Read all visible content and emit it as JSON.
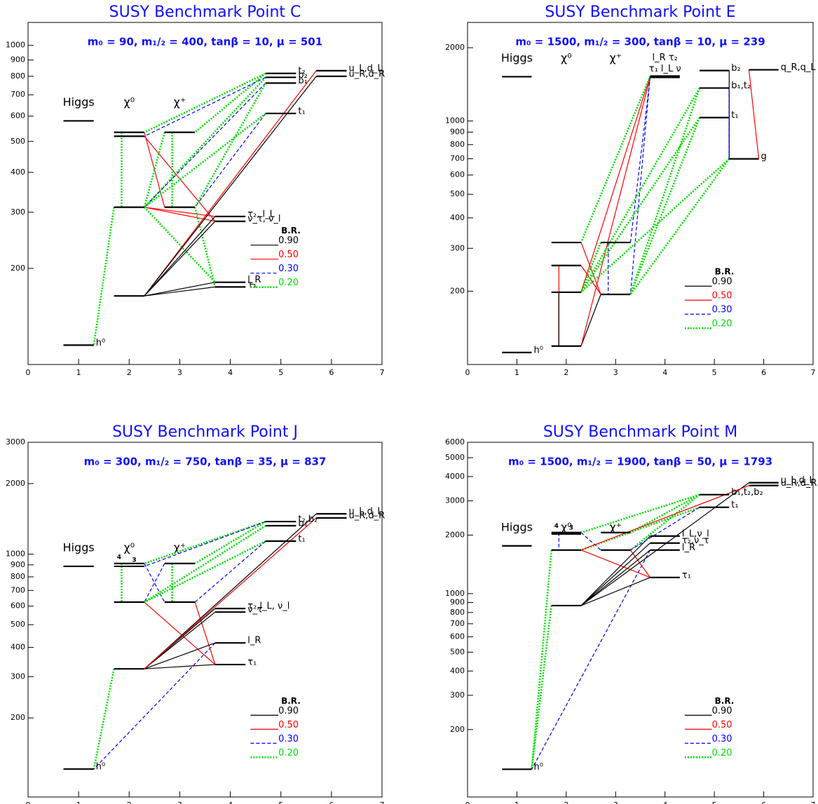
{
  "chart_data": [
    {
      "type": "spectrum",
      "title": "SUSY Benchmark Point C",
      "subtitle": "m₀ = 90,   m₁/₂ = 400,   tanβ = 10,  μ = 501",
      "xlim": [
        0,
        7
      ],
      "xticks": [
        0,
        1,
        2,
        3,
        4,
        5,
        6,
        7
      ],
      "ylim": [
        100,
        1180
      ],
      "log_y": true,
      "yticks": [
        200,
        300,
        400,
        500,
        600,
        700,
        800,
        900,
        1000
      ],
      "column_labels": [
        {
          "x": 1,
          "label": "Higgs"
        },
        {
          "x": 2,
          "label": "χ⁰"
        },
        {
          "x": 3,
          "label": "χ⁺"
        }
      ],
      "levels": [
        {
          "x": 1,
          "mass": 115,
          "label": "h⁰"
        },
        {
          "x": 1,
          "mass": 580
        },
        {
          "x": 2,
          "mass": 534
        },
        {
          "x": 2,
          "mass": 519
        },
        {
          "x": 2,
          "mass": 311
        },
        {
          "x": 2,
          "mass": 164
        },
        {
          "x": 3,
          "mass": 534
        },
        {
          "x": 3,
          "mass": 311
        },
        {
          "x": 4,
          "mass": 291,
          "label": "τ₂, l_L"
        },
        {
          "x": 4,
          "mass": 281,
          "label": "ν_τ, ν_l"
        },
        {
          "x": 4,
          "mass": 181,
          "label": "l_R"
        },
        {
          "x": 4,
          "mass": 175,
          "label": "τ₁"
        },
        {
          "x": 5,
          "mass": 817,
          "label": "t₂"
        },
        {
          "x": 5,
          "mass": 794,
          "label": "b₂"
        },
        {
          "x": 5,
          "mass": 762,
          "label": "b₁"
        },
        {
          "x": 5,
          "mass": 612,
          "label": "t₁"
        },
        {
          "x": 6,
          "mass": 833,
          "label": "u_L,d_L"
        },
        {
          "x": 6,
          "mass": 800,
          "label": "u_R,d_R"
        }
      ],
      "decays": [
        {
          "from": 4,
          "to": 0,
          "br": 0.2
        },
        {
          "from": 2,
          "to": 4,
          "br": 0.2
        },
        {
          "from": 2,
          "to": 7,
          "br": 0.5
        },
        {
          "from": 3,
          "to": 9,
          "br": 0.5
        },
        {
          "from": 6,
          "to": 4,
          "br": 0.2
        },
        {
          "from": 6,
          "to": 7,
          "br": 0.2
        },
        {
          "from": 4,
          "to": 8,
          "br": 0.5
        },
        {
          "from": 4,
          "to": 9,
          "br": 0.5
        },
        {
          "from": 4,
          "to": 10,
          "br": 0.2
        },
        {
          "from": 7,
          "to": 11,
          "br": 0.2
        },
        {
          "from": 8,
          "to": 5,
          "br": 0.9
        },
        {
          "from": 9,
          "to": 5,
          "br": 0.9
        },
        {
          "from": 10,
          "to": 5,
          "br": 0.9
        },
        {
          "from": 11,
          "to": 5,
          "br": 0.9
        },
        {
          "from": 12,
          "to": 2,
          "br": 0.2
        },
        {
          "from": 12,
          "to": 6,
          "br": 0.2
        },
        {
          "from": 13,
          "to": 4,
          "br": 0.2
        },
        {
          "from": 14,
          "to": 4,
          "br": 0.3
        },
        {
          "from": 13,
          "to": 3,
          "br": 0.3
        },
        {
          "from": 15,
          "to": 7,
          "br": 0.3
        },
        {
          "from": 15,
          "to": 4,
          "br": 0.2
        },
        {
          "from": 16,
          "to": 5,
          "br": 0.5
        },
        {
          "from": 17,
          "to": 5,
          "br": 0.9
        },
        {
          "from": 14,
          "to": 7,
          "br": 0.2
        }
      ],
      "legend_title": "B.R.",
      "legend": "right",
      "branching_ratios": [
        {
          "value": 0.9,
          "label": "0.90"
        },
        {
          "value": 0.5,
          "label": "0.50"
        },
        {
          "value": 0.3,
          "label": "0.30"
        },
        {
          "value": 0.2,
          "label": "0.20"
        }
      ],
      "br_colors": [
        "#000000",
        "#ff0000",
        "#0000ff",
        "#00e000"
      ],
      "title_color": "#1010ff"
    },
    {
      "type": "spectrum",
      "title": "SUSY Benchmark Point E",
      "subtitle": "m₀ = 1500, m₁/₂ = 300,   tanβ = 10,  μ = 239",
      "xlim": [
        0,
        7
      ],
      "xticks": [
        0,
        1,
        2,
        3,
        4,
        5,
        6,
        7
      ],
      "ylim": [
        100,
        2540
      ],
      "log_y": true,
      "yticks": [
        200,
        300,
        400,
        500,
        600,
        700,
        800,
        900,
        1000,
        2000
      ],
      "column_labels": [
        {
          "x": 1,
          "label": "Higgs"
        },
        {
          "x": 2,
          "label": "χ⁰"
        },
        {
          "x": 3,
          "label": "χ⁺"
        }
      ],
      "levels": [
        {
          "x": 1,
          "mass": 112,
          "label": "h⁰"
        },
        {
          "x": 1,
          "mass": 1520
        },
        {
          "x": 2,
          "mass": 317
        },
        {
          "x": 2,
          "mass": 255
        },
        {
          "x": 2,
          "mass": 198
        },
        {
          "x": 2,
          "mass": 119
        },
        {
          "x": 3,
          "mass": 317
        },
        {
          "x": 3,
          "mass": 194
        },
        {
          "x": 4,
          "mass": 1530,
          "label": "l_R  τ₂"
        },
        {
          "x": 4,
          "mass": 1510,
          "label": "τ₁  l_L  ν"
        },
        {
          "x": 5,
          "mass": 1612,
          "label": "b₂"
        },
        {
          "x": 5,
          "mass": 1366,
          "label": "b₁,t₂"
        },
        {
          "x": 5,
          "mass": 1033,
          "label": "t₁"
        },
        {
          "x": 6,
          "mass": 1623,
          "label": "q_R,q_L"
        },
        {
          "x": 5.6,
          "mass": 699,
          "label": "g"
        }
      ],
      "decays": [
        {
          "from": 3,
          "to": 5,
          "br": 0.5
        },
        {
          "from": 4,
          "to": 5,
          "br": 0.9
        },
        {
          "from": 2,
          "to": 7,
          "br": 0.5
        },
        {
          "from": 3,
          "to": 7,
          "br": 0.5
        },
        {
          "from": 7,
          "to": 5,
          "br": 0.9
        },
        {
          "from": 6,
          "to": 4,
          "br": 0.2
        },
        {
          "from": 6,
          "to": 7,
          "br": 0.3
        },
        {
          "from": 8,
          "to": 4,
          "br": 0.5
        },
        {
          "from": 9,
          "to": 5,
          "br": 0.5
        },
        {
          "from": 8,
          "to": 7,
          "br": 0.3
        },
        {
          "from": 9,
          "to": 6,
          "br": 0.3
        },
        {
          "from": 8,
          "to": 2,
          "br": 0.2
        },
        {
          "from": 11,
          "to": 4,
          "br": 0.2
        },
        {
          "from": 11,
          "to": 7,
          "br": 0.2
        },
        {
          "from": 12,
          "to": 4,
          "br": 0.2
        },
        {
          "from": 12,
          "to": 7,
          "br": 0.2
        },
        {
          "from": 14,
          "to": 4,
          "br": 0.2
        },
        {
          "from": 14,
          "to": 7,
          "br": 0.2
        },
        {
          "from": 10,
          "to": 14,
          "br": 0.9
        },
        {
          "from": 11,
          "to": 14,
          "br": 0.3
        },
        {
          "from": 12,
          "to": 14,
          "br": 0.3
        },
        {
          "from": 13,
          "to": 14,
          "br": 0.5
        }
      ],
      "legend_title": "B.R.",
      "legend": "lower right",
      "branching_ratios": [
        {
          "value": 0.9,
          "label": "0.90"
        },
        {
          "value": 0.5,
          "label": "0.50"
        },
        {
          "value": 0.3,
          "label": "0.30"
        },
        {
          "value": 0.2,
          "label": "0.20"
        }
      ],
      "br_colors": [
        "#000000",
        "#ff0000",
        "#0000ff",
        "#00e000"
      ],
      "title_color": "#1010ff"
    },
    {
      "type": "spectrum",
      "title": "SUSY Benchmark Point J",
      "subtitle": "m₀ = 300,  m₁/₂ = 750,  tanβ = 35,  μ = 837",
      "xlim": [
        0,
        7
      ],
      "xticks": [
        0,
        1,
        2,
        3,
        4,
        5,
        6,
        7
      ],
      "ylim": [
        92,
        3000
      ],
      "log_y": true,
      "yticks": [
        200,
        300,
        400,
        500,
        600,
        700,
        800,
        900,
        1000,
        2000,
        3000
      ],
      "column_labels": [
        {
          "x": 1,
          "label": "Higgs"
        },
        {
          "x": 2,
          "label": "χ⁰"
        },
        {
          "x": 3,
          "label": "χ⁺"
        }
      ],
      "levels": [
        {
          "x": 1,
          "mass": 121,
          "label": "h⁰"
        },
        {
          "x": 1,
          "mass": 887
        },
        {
          "x": 2,
          "mass": 912,
          "label": "4"
        },
        {
          "x": 2,
          "mass": 887,
          "label": "3"
        },
        {
          "x": 2,
          "mass": 624
        },
        {
          "x": 2,
          "mass": 324
        },
        {
          "x": 3,
          "mass": 912
        },
        {
          "x": 3,
          "mass": 624
        },
        {
          "x": 4,
          "mass": 586,
          "label": "τ₂,l_L, ν_l"
        },
        {
          "x": 4,
          "mass": 566,
          "label": "ν_τ"
        },
        {
          "x": 4,
          "mass": 418,
          "label": "l_R"
        },
        {
          "x": 4,
          "mass": 338,
          "label": "τ₁"
        },
        {
          "x": 5,
          "mass": 1377,
          "label": "t₂,b₂"
        },
        {
          "x": 5,
          "mass": 1322,
          "label": "b₁"
        },
        {
          "x": 5,
          "mass": 1136,
          "label": "t₁"
        },
        {
          "x": 6,
          "mass": 1486,
          "label": "u_L,d_L"
        },
        {
          "x": 6,
          "mass": 1427,
          "label": "u_R,d_R"
        }
      ],
      "decays": [
        {
          "from": 5,
          "to": 0,
          "br": 0.2
        },
        {
          "from": 10,
          "to": 0,
          "br": 0.3
        },
        {
          "from": 2,
          "to": 4,
          "br": 0.2
        },
        {
          "from": 2,
          "to": 7,
          "br": 0.3
        },
        {
          "from": 6,
          "to": 4,
          "br": 0.3
        },
        {
          "from": 6,
          "to": 7,
          "br": 0.2
        },
        {
          "from": 4,
          "to": 11,
          "br": 0.5
        },
        {
          "from": 7,
          "to": 11,
          "br": 0.5
        },
        {
          "from": 8,
          "to": 5,
          "br": 0.9
        },
        {
          "from": 9,
          "to": 5,
          "br": 0.9
        },
        {
          "from": 10,
          "to": 5,
          "br": 0.9
        },
        {
          "from": 11,
          "to": 5,
          "br": 0.9
        },
        {
          "from": 12,
          "to": 2,
          "br": 0.2
        },
        {
          "from": 12,
          "to": 6,
          "br": 0.2
        },
        {
          "from": 13,
          "to": 4,
          "br": 0.2
        },
        {
          "from": 14,
          "to": 4,
          "br": 0.2
        },
        {
          "from": 14,
          "to": 7,
          "br": 0.3
        },
        {
          "from": 15,
          "to": 5,
          "br": 0.9
        },
        {
          "from": 16,
          "to": 5,
          "br": 0.5
        },
        {
          "from": 12,
          "to": 3,
          "br": 0.3
        }
      ],
      "legend_title": "B.R.",
      "legend": "lower right",
      "branching_ratios": [
        {
          "value": 0.9,
          "label": "0.90"
        },
        {
          "value": 0.5,
          "label": "0.50"
        },
        {
          "value": 0.3,
          "label": "0.30"
        },
        {
          "value": 0.2,
          "label": "0.20"
        }
      ],
      "br_colors": [
        "#000000",
        "#ff0000",
        "#0000ff",
        "#00e000"
      ],
      "title_color": "#1010ff"
    },
    {
      "type": "spectrum",
      "title": "SUSY Benchmark Point M",
      "subtitle": "m₀ = 1500, m₁/₂ = 1900, tanβ = 50,  μ = 1793",
      "xlim": [
        0,
        7
      ],
      "xticks": [
        0,
        1,
        2,
        3,
        4,
        5,
        6,
        7
      ],
      "ylim": [
        90,
        6000
      ],
      "log_y": true,
      "yticks": [
        200,
        300,
        400,
        500,
        600,
        700,
        800,
        900,
        1000,
        2000,
        3000,
        4000,
        5000,
        6000
      ],
      "column_labels": [
        {
          "x": 1,
          "label": "Higgs"
        },
        {
          "x": 2,
          "label": "χ⁰"
        },
        {
          "x": 3,
          "label": "χ⁺"
        }
      ],
      "levels": [
        {
          "x": 1,
          "mass": 125,
          "label": "h⁰"
        },
        {
          "x": 1,
          "mass": 1760
        },
        {
          "x": 2,
          "mass": 2061,
          "label": "4"
        },
        {
          "x": 2,
          "mass": 2027,
          "label": "3"
        },
        {
          "x": 2,
          "mass": 1675
        },
        {
          "x": 2,
          "mass": 868
        },
        {
          "x": 3,
          "mass": 2061
        },
        {
          "x": 3,
          "mass": 1675
        },
        {
          "x": 4,
          "mass": 1977,
          "label": "l_L,ν_l"
        },
        {
          "x": 4,
          "mass": 1820,
          "label": "τ₂,ν_τ"
        },
        {
          "x": 4,
          "mass": 1675,
          "label": "l_R"
        },
        {
          "x": 4,
          "mass": 1211,
          "label": "τ₁"
        },
        {
          "x": 5,
          "mass": 3228,
          "label": "b₁,t₂,b₂"
        },
        {
          "x": 5,
          "mass": 2780,
          "label": "t₁"
        },
        {
          "x": 6,
          "mass": 3718,
          "label": "u_L,d_L"
        },
        {
          "x": 6,
          "mass": 3597,
          "label": "u_R,d_R"
        }
      ],
      "decays": [
        {
          "from": 5,
          "to": 0,
          "br": 0.2
        },
        {
          "from": 4,
          "to": 0,
          "br": 0.2
        },
        {
          "from": 10,
          "to": 0,
          "br": 0.3
        },
        {
          "from": 2,
          "to": 4,
          "br": 0.3
        },
        {
          "from": 2,
          "to": 7,
          "br": 0.3
        },
        {
          "from": 4,
          "to": 11,
          "br": 0.5
        },
        {
          "from": 7,
          "to": 11,
          "br": 0.5
        },
        {
          "from": 8,
          "to": 5,
          "br": 0.9
        },
        {
          "from": 9,
          "to": 5,
          "br": 0.9
        },
        {
          "from": 10,
          "to": 5,
          "br": 0.9
        },
        {
          "from": 11,
          "to": 5,
          "br": 0.9
        },
        {
          "from": 12,
          "to": 2,
          "br": 0.2
        },
        {
          "from": 12,
          "to": 6,
          "br": 0.2
        },
        {
          "from": 13,
          "to": 4,
          "br": 0.2
        },
        {
          "from": 12,
          "to": 7,
          "br": 0.2
        },
        {
          "from": 13,
          "to": 7,
          "br": 0.3
        },
        {
          "from": 14,
          "to": 5,
          "br": 0.9
        },
        {
          "from": 15,
          "to": 4,
          "br": 0.5
        }
      ],
      "legend_title": "B.R.",
      "legend": "lower right",
      "branching_ratios": [
        {
          "value": 0.9,
          "label": "0.90"
        },
        {
          "value": 0.5,
          "label": "0.50"
        },
        {
          "value": 0.3,
          "label": "0.30"
        },
        {
          "value": 0.2,
          "label": "0.20"
        }
      ],
      "br_colors": [
        "#000000",
        "#ff0000",
        "#0000ff",
        "#00e000"
      ],
      "title_color": "#1010ff"
    }
  ]
}
